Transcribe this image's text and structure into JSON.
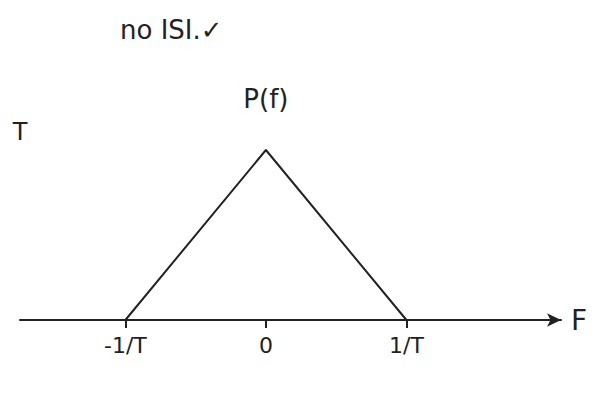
{
  "chart_data": {
    "type": "line",
    "title": "no ISI.✓",
    "x": [
      -1,
      0,
      1
    ],
    "values": [
      0,
      1,
      0
    ],
    "color": "#222222",
    "xlabel": "F",
    "ylabel": "P(f)",
    "xlim": [
      -1.75,
      2.1
    ],
    "ylim": [
      0,
      1
    ],
    "xticks": [
      {
        "value": -1,
        "label": "-1/T"
      },
      0,
      {
        "value": 1,
        "label": "1/T"
      }
    ],
    "yticks": [
      {
        "value": 1,
        "label": "T"
      }
    ],
    "grid": false
  }
}
